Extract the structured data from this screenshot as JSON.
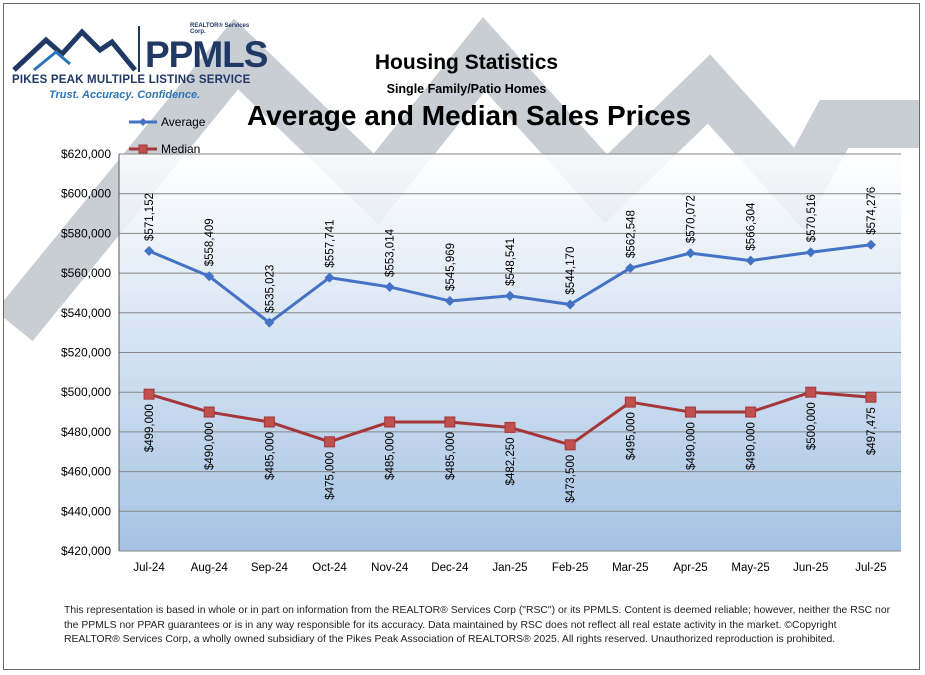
{
  "logo": {
    "corp": "REALTOR® Services Corp.",
    "brand": "PPMLS",
    "name": "PIKES PEAK MULTIPLE LISTING SERVICE",
    "tagline": "Trust. Accuracy. Confidence."
  },
  "colors": {
    "average": "#4472c4",
    "median": "#a5373a",
    "grid": "#868686",
    "deco": "#c8ccd3"
  },
  "disclaimer": "This representation is based in whole or in part on information from the REALTOR® Services Corp (\"RSC\") or its PPMLS. Content is deemed reliable; however, neither the RSC nor the PPMLS nor PPAR guarantees or is in any way responsible for its accuracy. Data maintained by RSC does not reflect all real estate activity in the market. ©Copyright REALTOR® Services Corp, a wholly owned subsidiary of the Pikes Peak Association of REALTORS® 2025. All rights reserved. Unauthorized reproduction is prohibited.",
  "chart_data": {
    "type": "line",
    "title": "Housing Statistics",
    "subtitle": "Single Family/Patio Homes",
    "heading": "Average and Median Sales Prices",
    "categories": [
      "Jul-24",
      "Aug-24",
      "Sep-24",
      "Oct-24",
      "Nov-24",
      "Dec-24",
      "Jan-25",
      "Feb-25",
      "Mar-25",
      "Apr-25",
      "May-25",
      "Jun-25",
      "Jul-25"
    ],
    "series": [
      {
        "name": "Average",
        "marker": "diamond",
        "values": [
          571152,
          558409,
          535023,
          557741,
          553014,
          545969,
          548541,
          544170,
          562548,
          570072,
          566304,
          570516,
          574276
        ],
        "labels": [
          "$571,152",
          "$558,409",
          "$535,023",
          "$557,741",
          "$553,014",
          "$545,969",
          "$548,541",
          "$544,170",
          "$562,548",
          "$570,072",
          "$566,304",
          "$570,516",
          "$574,276"
        ]
      },
      {
        "name": "Median",
        "marker": "square",
        "values": [
          499000,
          490000,
          485000,
          475000,
          485000,
          485000,
          482250,
          473500,
          495000,
          490000,
          490000,
          500000,
          497475
        ],
        "labels": [
          "$499,000",
          "$490,000",
          "$485,000",
          "$475,000",
          "$485,000",
          "$485,000",
          "$482,250",
          "$473,500",
          "$495,000",
          "$490,000",
          "$490,000",
          "$500,000",
          "$497,475"
        ]
      }
    ],
    "yticks": [
      "$420,000",
      "$440,000",
      "$460,000",
      "$480,000",
      "$500,000",
      "$520,000",
      "$540,000",
      "$560,000",
      "$580,000",
      "$600,000",
      "$620,000"
    ],
    "ylim": [
      420000,
      620000
    ],
    "grid": true,
    "legend": "top-left"
  }
}
